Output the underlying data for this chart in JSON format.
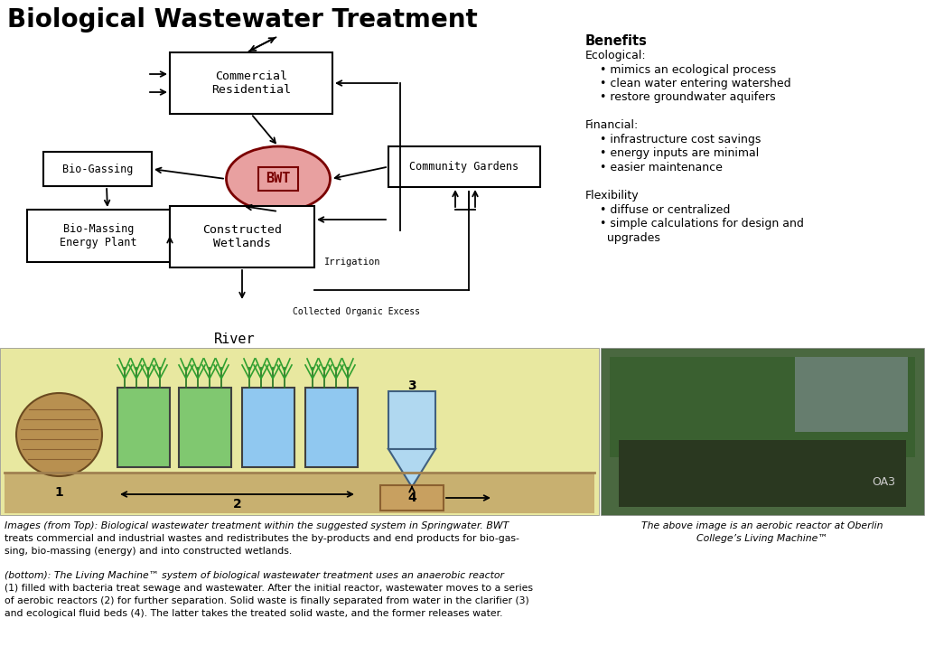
{
  "title": "Biological Wastewater Treatment",
  "title_fontsize": 20,
  "background_color": "#ffffff",
  "benefits_title": "Benefits",
  "caption_left_lines": [
    "Images (from Top): Biological wastewater treatment within the suggested system in Springwater. BWT",
    "treats commercial and industrial wastes and redistributes the by-products and end products for bio-gas-",
    "sing, bio-massing (energy) and into constructed wetlands.",
    "",
    "(bottom): The Living Machine™ system of biological wastewater treatment uses an anaerobic reactor",
    "(1) filled with bacteria treat sewage and wastewater. After the initial reactor, wastewater moves to a series",
    "of aerobic reactors (2) for further separation. Solid waste is finally separated from water in the clarifier (3)",
    "and ecological fluid beds (4). The latter takes the treated solid waste, and the former releases water."
  ],
  "caption_right_lines": [
    "The above image is an aerobic reactor at Oberlin",
    "College’s Living Machine™"
  ],
  "benefit_lines": [
    "Ecological:",
    "    • mimics an ecological process",
    "    • clean water entering watershed",
    "    • restore groundwater aquifers",
    "",
    "Financial:",
    "    • infrastructure cost savings",
    "    • energy inputs are minimal",
    "    • easier maintenance",
    "",
    "Flexibility",
    "    • diffuse or centralized",
    "    • simple calculations for design and",
    "      upgrades"
  ]
}
